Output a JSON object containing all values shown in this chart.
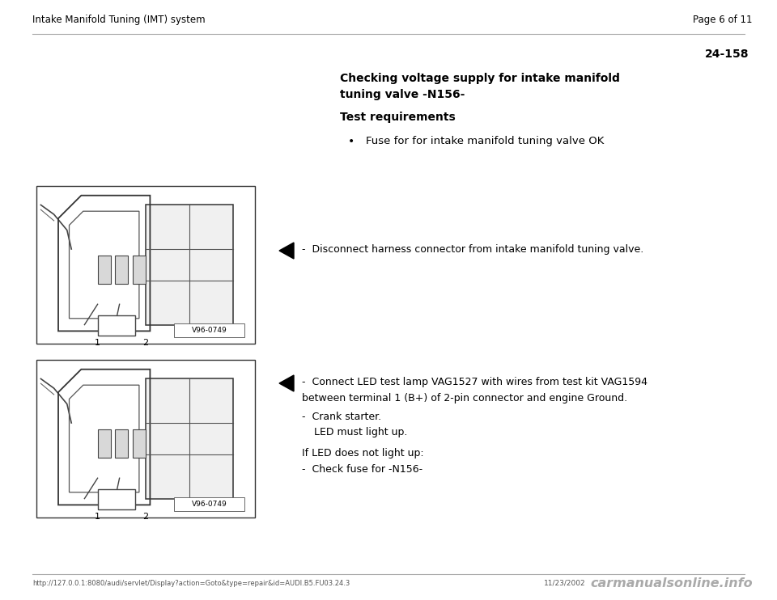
{
  "background_color": "#ffffff",
  "header_left": "Intake Manifold Tuning (IMT) system",
  "header_right": "Page 6 of 11",
  "page_number": "24-158",
  "title_line1": "Checking voltage supply for intake manifold",
  "title_line2": "tuning valve -N156-",
  "section_heading": "Test requirements",
  "bullet_text": "Fuse for for intake manifold tuning valve OK",
  "arrow1_text": "-  Disconnect harness connector from intake manifold tuning valve.",
  "arrow2_instruction1": "-  Connect LED test lamp VAG1527 with wires from test kit VAG1594",
  "arrow2_instruction1b": "    between terminal 1 (B+) of 2-pin connector and engine Ground.",
  "arrow2_instruction2": "-  Crank starter.",
  "arrow2_instruction3": "    LED must light up.",
  "if_led_text": "If LED does not light up:",
  "check_fuse_text": "-  Check fuse for -N156-",
  "footer_url": "http://127.0.0.1:8080/audi/servlet/Display?action=Goto&type=repair&id=AUDI.B5.FU03.24.3",
  "footer_date": "11/23/2002",
  "footer_logo": "carmanualsonline.info",
  "text_color": "#000000",
  "gray_line": "#999999",
  "img_label": "V96-0749"
}
